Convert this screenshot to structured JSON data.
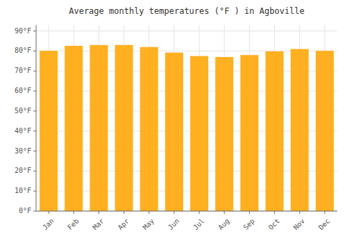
{
  "chart_data": {
    "type": "bar",
    "title": "Average monthly temperatures (°F ) in Agboville",
    "categories": [
      "Jan",
      "Feb",
      "Mar",
      "Apr",
      "May",
      "Jun",
      "Jul",
      "Aug",
      "Sep",
      "Oct",
      "Nov",
      "Dec"
    ],
    "values": [
      80.1,
      82.6,
      83.0,
      83.0,
      82.0,
      79.2,
      77.5,
      77.0,
      78.0,
      79.8,
      81.0,
      80.1
    ],
    "color": "#FFB020",
    "ylim": [
      0,
      93
    ],
    "yticks": [
      {
        "value": 0,
        "label": "0°F"
      },
      {
        "value": 10,
        "label": "10°F"
      },
      {
        "value": 20,
        "label": "20°F"
      },
      {
        "value": 30,
        "label": "30°F"
      },
      {
        "value": 40,
        "label": "40°F"
      },
      {
        "value": 50,
        "label": "50°F"
      },
      {
        "value": 60,
        "label": "60°F"
      },
      {
        "value": 70,
        "label": "70°F"
      },
      {
        "value": 80,
        "label": "80°F"
      },
      {
        "value": 90,
        "label": "90°F"
      }
    ],
    "grid": true
  }
}
